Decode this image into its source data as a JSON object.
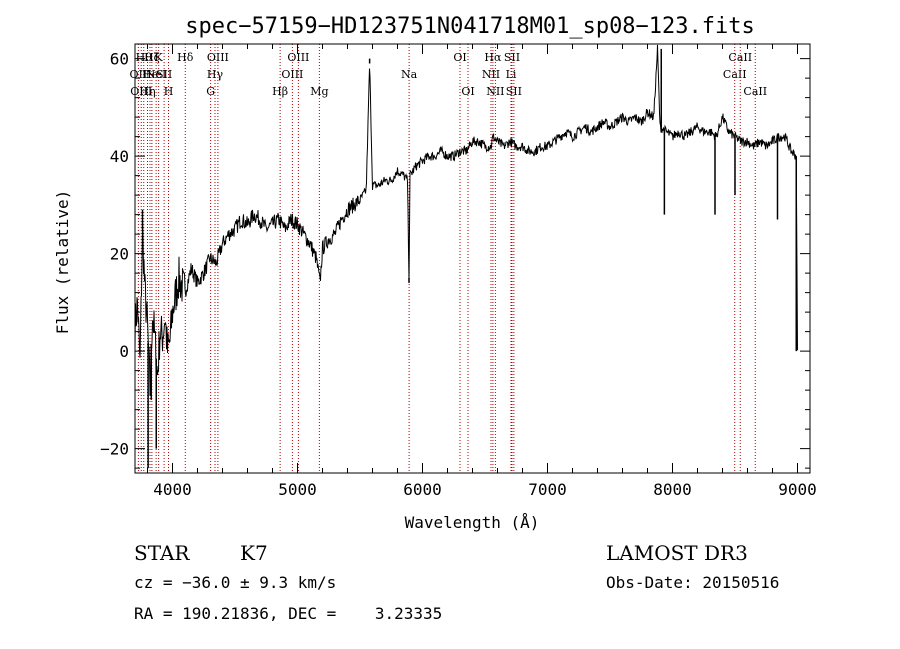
{
  "chart_data": {
    "type": "line",
    "title": "spec−57159−HD123751N041718M01_sp08−123.fits",
    "xlabel": "Wavelength (Å)",
    "ylabel": "Flux (relative)",
    "xlim": [
      3700,
      9100
    ],
    "ylim": [
      -25,
      63
    ],
    "xticks": [
      4000,
      5000,
      6000,
      7000,
      8000,
      9000
    ],
    "yticks": [
      -20,
      0,
      20,
      40,
      60
    ],
    "ytick_labels": [
      "−20",
      "0",
      "20",
      "40",
      "60"
    ],
    "grid": false,
    "series": [
      {
        "x": [
          3700,
          3720,
          3740,
          3760,
          3780,
          3800,
          3820,
          3840,
          3860,
          3880,
          3900,
          3920,
          3940,
          3960,
          3980,
          4000,
          4050,
          4100,
          4150,
          4200,
          4250,
          4300,
          4350,
          4400,
          4450,
          4500,
          4550,
          4600,
          4650,
          4700,
          4750,
          4800,
          4850,
          4900,
          4950,
          5000,
          5050,
          5100,
          5150,
          5180,
          5200,
          5250,
          5300,
          5350,
          5400,
          5450,
          5500,
          5550,
          5577,
          5600,
          5650,
          5700,
          5750,
          5800,
          5850,
          5880,
          5892,
          5900,
          5950,
          6000,
          6050,
          6100,
          6150,
          6200,
          6250,
          6300,
          6350,
          6400,
          6450,
          6500,
          6550,
          6563,
          6600,
          6650,
          6700,
          6750,
          6800,
          6850,
          6900,
          6950,
          7000,
          7050,
          7100,
          7150,
          7200,
          7250,
          7300,
          7350,
          7400,
          7450,
          7500,
          7550,
          7600,
          7650,
          7700,
          7750,
          7800,
          7850,
          7880,
          7900,
          7950,
          8000,
          8050,
          8100,
          8150,
          8200,
          8250,
          8300,
          8350,
          8400,
          8450,
          8500,
          8550,
          8600,
          8650,
          8700,
          8750,
          8800,
          8850,
          8900,
          8950,
          8990,
          9000
        ],
        "y": [
          5,
          10,
          -3,
          25,
          12,
          5,
          -8,
          8,
          2,
          -5,
          4,
          3,
          7,
          0,
          2,
          8,
          15,
          12,
          17,
          14,
          16,
          19,
          18,
          22,
          24,
          25,
          27,
          26,
          28,
          27,
          25,
          26,
          27,
          25,
          27,
          26,
          24,
          22,
          19,
          14,
          21,
          23,
          24,
          27,
          29,
          30,
          31,
          33,
          59,
          34,
          34,
          35,
          35,
          37,
          36,
          35,
          15,
          36,
          38,
          39,
          40,
          40,
          41,
          40,
          40,
          41,
          41,
          43,
          43,
          42,
          42,
          44,
          43,
          42,
          43,
          42,
          42,
          41,
          41,
          42,
          42,
          43,
          44,
          45,
          44,
          45,
          46,
          45,
          46,
          47,
          46,
          47,
          48,
          47,
          48,
          47,
          49,
          48,
          62,
          46,
          45,
          44,
          45,
          44,
          45,
          46,
          45,
          45,
          44,
          48,
          45,
          44,
          43,
          43,
          42,
          43,
          42,
          43,
          44,
          44,
          41,
          40,
          0
        ]
      }
    ],
    "spike_features": [
      {
        "x": 3760,
        "y": 29
      },
      {
        "x": 3805,
        "y": -24
      },
      {
        "x": 3830,
        "y": -10
      },
      {
        "x": 3870,
        "y": -20
      },
      {
        "x": 5577,
        "y": 60
      },
      {
        "x": 5892,
        "y": 14
      },
      {
        "x": 7910,
        "y": 62
      },
      {
        "x": 7935,
        "y": 28
      },
      {
        "x": 8340,
        "y": 28
      },
      {
        "x": 8500,
        "y": 32
      },
      {
        "x": 8840,
        "y": 27
      },
      {
        "x": 8990,
        "y": 0
      }
    ],
    "spectral_lines": [
      {
        "x": 3727,
        "label": "OII",
        "row": 1
      },
      {
        "x": 3750,
        "label": "OIII",
        "row": 2
      },
      {
        "x": 3770,
        "label": "Hθ",
        "row": 0
      },
      {
        "x": 3800,
        "label": "Hη",
        "row": 2
      },
      {
        "x": 3820,
        "label": "He",
        "row": 1
      },
      {
        "x": 3835,
        "label": "Hζ",
        "row": 0
      },
      {
        "x": 3869,
        "label": "NeI",
        "row": 1
      },
      {
        "x": 3889,
        "label": "K",
        "row": 0
      },
      {
        "x": 3933,
        "label": "SII",
        "row": 1
      },
      {
        "x": 3968,
        "label": "H",
        "row": 2
      },
      {
        "x": 4102,
        "label": "Hδ",
        "row": 0
      },
      {
        "x": 4305,
        "label": "G",
        "row": 2
      },
      {
        "x": 4340,
        "label": "Hγ",
        "row": 1
      },
      {
        "x": 4363,
        "label": "OIII",
        "row": 0
      },
      {
        "x": 4861,
        "label": "Hβ",
        "row": 2
      },
      {
        "x": 4959,
        "label": "OIII",
        "row": 1
      },
      {
        "x": 5007,
        "label": "OIII",
        "row": 0
      },
      {
        "x": 5175,
        "label": "Mg",
        "row": 2
      },
      {
        "x": 5893,
        "label": "Na",
        "row": 1
      },
      {
        "x": 6300,
        "label": "OI",
        "row": 0
      },
      {
        "x": 6364,
        "label": "OI",
        "row": 2
      },
      {
        "x": 6548,
        "label": "NII",
        "row": 1
      },
      {
        "x": 6563,
        "label": "Hα",
        "row": 0
      },
      {
        "x": 6583,
        "label": "NII",
        "row": 2
      },
      {
        "x": 6708,
        "label": "Li",
        "row": 1
      },
      {
        "x": 6716,
        "label": "SII",
        "row": 0
      },
      {
        "x": 6731,
        "label": "SII",
        "row": 2
      },
      {
        "x": 8498,
        "label": "CaII",
        "row": 1
      },
      {
        "x": 8542,
        "label": "CaII",
        "row": 0
      },
      {
        "x": 8662,
        "label": "CaII",
        "row": 2
      }
    ]
  },
  "info": {
    "class": "STAR",
    "subclass": "K7",
    "survey": "LAMOST DR3",
    "cz": "cz = −36.0 ± 9.3 km/s",
    "obs_date": "Obs-Date: 20150516",
    "coords": "RA = 190.21836, DEC =    3.23335"
  }
}
